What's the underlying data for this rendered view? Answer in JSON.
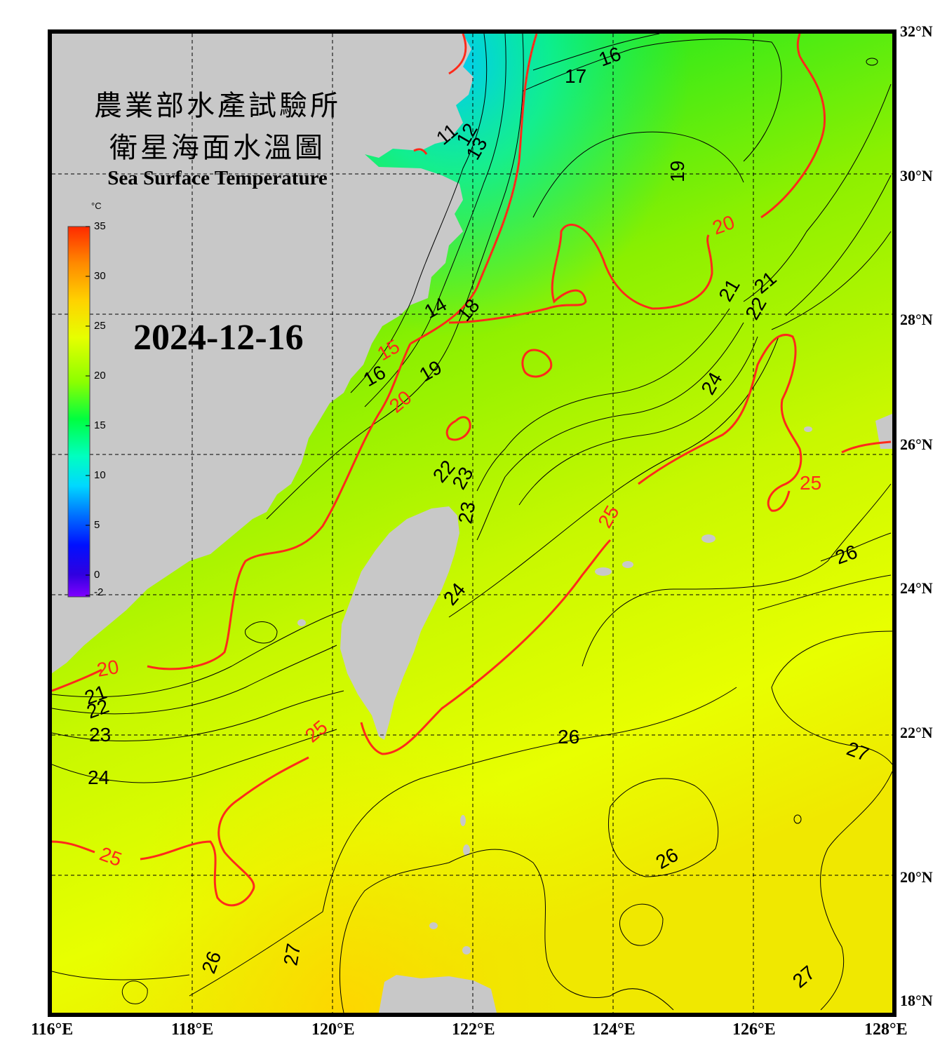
{
  "title": {
    "zh_line1": "農業部水產試驗所",
    "zh_line2": "衛星海面水溫圖",
    "en": "Sea Surface Temperature"
  },
  "date": "2024-12-16",
  "colorbar": {
    "unit": "°C",
    "ticks": [
      "35",
      "30",
      "25",
      "20",
      "15",
      "10",
      "5",
      "0",
      "-2"
    ],
    "colors": [
      "#ff2a00",
      "#ff8a00",
      "#ffd200",
      "#e6ff00",
      "#8cff00",
      "#00ff40",
      "#00ffc0",
      "#00d8ff",
      "#0070ff",
      "#0010ff",
      "#3000e0",
      "#8000ff"
    ]
  },
  "axes": {
    "lat_labels": [
      "32°N",
      "30°N",
      "28°N",
      "26°N",
      "24°N",
      "22°N",
      "20°N",
      "18°N"
    ],
    "lon_labels": [
      "116°E",
      "118°E",
      "120°E",
      "122°E",
      "124°E",
      "126°E",
      "128°E"
    ],
    "extent": {
      "lon": [
        116,
        128
      ],
      "lat": [
        18,
        32
      ]
    }
  },
  "colors": {
    "land": "#c8c8c8",
    "major_isotherm": "#ff2a1a",
    "minor_isotherm": "#000000",
    "grid": "#000000"
  },
  "contour_labels": {
    "major": [
      "20",
      "20",
      "20",
      "25",
      "25",
      "25",
      "25",
      "15"
    ],
    "minor": [
      "11",
      "12",
      "13",
      "14",
      "16",
      "16",
      "17",
      "18",
      "19",
      "19",
      "21",
      "21",
      "22",
      "22",
      "23",
      "23",
      "21",
      "22",
      "23",
      "24",
      "24",
      "24",
      "26",
      "26",
      "26",
      "26",
      "27",
      "27",
      "27"
    ]
  }
}
